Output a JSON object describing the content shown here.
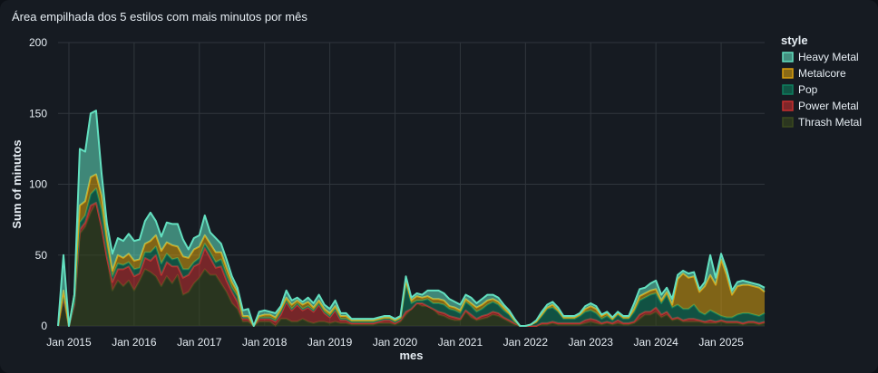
{
  "chart_data": {
    "type": "area",
    "stacked": true,
    "title": "Área empilhada dos 5 estilos com mais minutos por mês",
    "xlabel": "mes",
    "ylabel": "Sum of minutos",
    "ylim": [
      0,
      200
    ],
    "yticks": [
      0,
      50,
      100,
      150,
      200
    ],
    "xticks": [
      "Jan 2015",
      "Jan 2016",
      "Jan 2017",
      "Jan 2018",
      "Jan 2019",
      "Jan 2020",
      "Jan 2021",
      "Jan 2022",
      "Jan 2023",
      "Jan 2024",
      "Jan 2025"
    ],
    "grid": true,
    "legend": {
      "title": "style",
      "placement": "right"
    },
    "x_start": "2014-11",
    "x": [
      "2014-11",
      "2014-12",
      "2015-01",
      "2015-02",
      "2015-03",
      "2015-04",
      "2015-05",
      "2015-06",
      "2015-07",
      "2015-08",
      "2015-09",
      "2015-10",
      "2015-11",
      "2015-12",
      "2016-01",
      "2016-02",
      "2016-03",
      "2016-04",
      "2016-05",
      "2016-06",
      "2016-07",
      "2016-08",
      "2016-09",
      "2016-10",
      "2016-11",
      "2016-12",
      "2017-01",
      "2017-02",
      "2017-03",
      "2017-04",
      "2017-05",
      "2017-06",
      "2017-07",
      "2017-08",
      "2017-09",
      "2017-10",
      "2017-11",
      "2017-12",
      "2018-01",
      "2018-02",
      "2018-03",
      "2018-04",
      "2018-05",
      "2018-06",
      "2018-07",
      "2018-08",
      "2018-09",
      "2018-10",
      "2018-11",
      "2018-12",
      "2019-01",
      "2019-02",
      "2019-03",
      "2019-04",
      "2019-05",
      "2019-06",
      "2019-07",
      "2019-08",
      "2019-09",
      "2019-10",
      "2019-11",
      "2019-12",
      "2020-01",
      "2020-02",
      "2020-03",
      "2020-04",
      "2020-05",
      "2020-06",
      "2020-07",
      "2020-08",
      "2020-09",
      "2020-10",
      "2020-11",
      "2020-12",
      "2021-01",
      "2021-02",
      "2021-03",
      "2021-04",
      "2021-05",
      "2021-06",
      "2021-07",
      "2021-08",
      "2021-09",
      "2021-10",
      "2021-11",
      "2021-12",
      "2022-01",
      "2022-02",
      "2022-03",
      "2022-04",
      "2022-05",
      "2022-06",
      "2022-07",
      "2022-08",
      "2022-09",
      "2022-10",
      "2022-11",
      "2022-12",
      "2023-01",
      "2023-02",
      "2023-03",
      "2023-04",
      "2023-05",
      "2023-06",
      "2023-07",
      "2023-08",
      "2023-09",
      "2023-10",
      "2023-11",
      "2023-12",
      "2024-01",
      "2024-02",
      "2024-03",
      "2024-04",
      "2024-05",
      "2024-06",
      "2024-07",
      "2024-08",
      "2024-09",
      "2024-10",
      "2024-11",
      "2024-12",
      "2025-01",
      "2025-02",
      "2025-03",
      "2025-04",
      "2025-05",
      "2025-06",
      "2025-07",
      "2025-08",
      "2025-09"
    ],
    "series": [
      {
        "name": "Thrash Metal",
        "color": "#3b4a1e",
        "values": [
          0,
          20,
          0,
          15,
          65,
          70,
          80,
          87,
          70,
          48,
          25,
          32,
          28,
          32,
          25,
          32,
          40,
          38,
          35,
          28,
          35,
          30,
          36,
          22,
          24,
          30,
          34,
          40,
          36,
          36,
          30,
          24,
          16,
          12,
          3,
          3,
          0,
          3,
          3,
          3,
          0,
          5,
          5,
          3,
          3,
          5,
          3,
          2,
          3,
          3,
          2,
          3,
          2,
          2,
          1,
          1,
          1,
          1,
          1,
          2,
          2,
          2,
          1,
          3,
          8,
          12,
          16,
          14,
          14,
          12,
          8,
          7,
          5,
          4,
          4,
          10,
          6,
          4,
          5,
          6,
          8,
          7,
          5,
          3,
          1,
          0,
          0,
          0,
          0,
          1,
          1,
          2,
          1,
          1,
          1,
          1,
          1,
          2,
          3,
          2,
          1,
          2,
          1,
          2,
          1,
          1,
          2,
          5,
          8,
          8,
          10,
          6,
          8,
          4,
          5,
          3,
          3,
          3,
          3,
          2,
          2,
          2,
          3,
          2,
          2,
          2,
          1,
          2,
          2,
          1,
          2
        ]
      },
      {
        "name": "Power Metal",
        "color": "#c62f2f",
        "values": [
          0,
          0,
          0,
          0,
          3,
          3,
          5,
          0,
          0,
          0,
          6,
          8,
          12,
          10,
          10,
          5,
          8,
          8,
          15,
          8,
          10,
          12,
          6,
          12,
          12,
          12,
          10,
          15,
          12,
          5,
          12,
          8,
          8,
          5,
          2,
          2,
          0,
          2,
          2,
          2,
          3,
          3,
          12,
          8,
          12,
          6,
          10,
          8,
          12,
          6,
          4,
          8,
          2,
          2,
          1,
          1,
          1,
          1,
          1,
          1,
          2,
          2,
          1,
          1,
          2,
          0,
          0,
          2,
          0,
          0,
          2,
          2,
          2,
          2,
          1,
          1,
          2,
          1,
          2,
          2,
          2,
          2,
          1,
          1,
          1,
          0,
          0,
          0,
          0,
          1,
          1,
          1,
          1,
          1,
          1,
          1,
          1,
          2,
          2,
          2,
          1,
          1,
          1,
          2,
          1,
          1,
          1,
          3,
          2,
          2,
          3,
          2,
          2,
          1,
          1,
          1,
          2,
          2,
          1,
          1,
          2,
          1,
          1,
          1,
          1,
          1,
          1,
          1,
          1,
          1,
          1
        ]
      },
      {
        "name": "Pop",
        "color": "#0e7f5e",
        "values": [
          0,
          2,
          0,
          2,
          5,
          5,
          8,
          10,
          12,
          8,
          4,
          4,
          3,
          3,
          5,
          4,
          4,
          6,
          6,
          8,
          6,
          5,
          6,
          6,
          4,
          3,
          4,
          3,
          4,
          4,
          5,
          4,
          3,
          4,
          1,
          1,
          0,
          1,
          1,
          1,
          1,
          2,
          1,
          1,
          1,
          1,
          1,
          1,
          1,
          1,
          1,
          1,
          1,
          1,
          1,
          1,
          1,
          1,
          1,
          1,
          1,
          1,
          1,
          1,
          20,
          4,
          2,
          2,
          5,
          4,
          6,
          6,
          5,
          5,
          4,
          6,
          6,
          5,
          5,
          7,
          7,
          6,
          5,
          4,
          1,
          0,
          0,
          1,
          3,
          5,
          10,
          10,
          8,
          3,
          3,
          3,
          5,
          6,
          6,
          5,
          3,
          4,
          2,
          4,
          3,
          3,
          7,
          10,
          10,
          12,
          10,
          8,
          12,
          8,
          9,
          8,
          7,
          10,
          6,
          5,
          7,
          6,
          3,
          3,
          3,
          5,
          7,
          6,
          5,
          5,
          6
        ]
      },
      {
        "name": "Metalcore",
        "color": "#d9a00f",
        "values": [
          0,
          3,
          0,
          5,
          12,
          10,
          12,
          10,
          10,
          6,
          4,
          6,
          5,
          6,
          6,
          6,
          6,
          8,
          8,
          9,
          8,
          10,
          8,
          9,
          8,
          9,
          8,
          6,
          6,
          7,
          5,
          5,
          4,
          3,
          1,
          1,
          0,
          1,
          2,
          2,
          2,
          2,
          2,
          3,
          2,
          3,
          3,
          2,
          2,
          2,
          2,
          2,
          2,
          2,
          1,
          1,
          1,
          1,
          1,
          1,
          1,
          1,
          1,
          1,
          2,
          2,
          3,
          2,
          2,
          3,
          3,
          3,
          2,
          2,
          2,
          2,
          2,
          3,
          3,
          3,
          2,
          2,
          2,
          1,
          1,
          0,
          0,
          0,
          0,
          1,
          1,
          2,
          1,
          1,
          1,
          1,
          1,
          2,
          3,
          3,
          2,
          2,
          1,
          1,
          1,
          1,
          2,
          3,
          3,
          3,
          3,
          2,
          2,
          2,
          18,
          25,
          22,
          20,
          14,
          20,
          25,
          20,
          40,
          30,
          16,
          20,
          20,
          20,
          20,
          20,
          15
        ]
      },
      {
        "name": "Heavy Metal",
        "color": "#63e0c0",
        "values": [
          0,
          25,
          0,
          0,
          40,
          35,
          45,
          45,
          16,
          10,
          12,
          12,
          12,
          14,
          14,
          14,
          16,
          20,
          10,
          10,
          14,
          15,
          16,
          12,
          6,
          8,
          8,
          14,
          8,
          10,
          6,
          6,
          4,
          3,
          4,
          5,
          0,
          3,
          3,
          2,
          3,
          2,
          5,
          3,
          2,
          2,
          3,
          3,
          4,
          3,
          3,
          4,
          2,
          2,
          1,
          1,
          1,
          1,
          1,
          1,
          1,
          1,
          1,
          1,
          3,
          2,
          2,
          2,
          4,
          6,
          6,
          5,
          5,
          4,
          4,
          3,
          4,
          3,
          4,
          4,
          3,
          3,
          2,
          2,
          1,
          0,
          0,
          0,
          1,
          2,
          2,
          2,
          2,
          1,
          1,
          1,
          1,
          2,
          2,
          2,
          1,
          1,
          1,
          1,
          1,
          1,
          4,
          5,
          4,
          5,
          6,
          4,
          3,
          4,
          3,
          2,
          3,
          3,
          2,
          3,
          14,
          5,
          4,
          4,
          3,
          3,
          3,
          2,
          2,
          2,
          3
        ]
      }
    ],
    "legend_order": [
      "Heavy Metal",
      "Metalcore",
      "Pop",
      "Power Metal",
      "Thrash Metal"
    ],
    "colors": {
      "background": "#161b22",
      "grid": "#30363d",
      "text": "#e6edf3"
    }
  }
}
